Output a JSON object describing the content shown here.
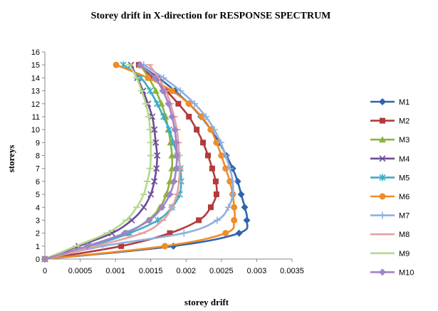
{
  "chart_data": {
    "type": "line",
    "title": "Storey drift  in  X-direction  for  RESPONSE  SPECTRUM",
    "xlabel": "storey drift",
    "ylabel": "storeys",
    "xlim": [
      0,
      0.0035
    ],
    "ylim": [
      0,
      16
    ],
    "x_ticks": [
      0,
      0.0005,
      0.001,
      0.0015,
      0.002,
      0.0025,
      0.003,
      0.0035
    ],
    "x_tick_labels": [
      "0",
      "0.0005",
      "0.001",
      "0.0015",
      "0.002",
      "0.0025",
      "0.003",
      "0.0035"
    ],
    "y_ticks": [
      0,
      1,
      2,
      3,
      4,
      5,
      6,
      7,
      8,
      9,
      10,
      11,
      12,
      13,
      14,
      15,
      16
    ],
    "y_tick_labels": [
      "0",
      "1",
      "2",
      "3",
      "4",
      "5",
      "6",
      "7",
      "8",
      "9",
      "10",
      "11",
      "12",
      "13",
      "14",
      "15",
      "16"
    ],
    "grid": false,
    "legend_position": "right",
    "y": [
      0,
      1,
      2,
      3,
      4,
      5,
      6,
      7,
      8,
      9,
      10,
      11,
      12,
      13,
      14,
      15
    ],
    "series": [
      {
        "name": "M1",
        "color": "#2e64ad",
        "marker": "diamond",
        "x": [
          0,
          0.00182,
          0.00275,
          0.00286,
          0.00283,
          0.00278,
          0.00273,
          0.00266,
          0.00257,
          0.00247,
          0.00235,
          0.00221,
          0.00204,
          0.00184,
          0.00161,
          0.00134
        ]
      },
      {
        "name": "M2",
        "color": "#b23b3b",
        "marker": "square",
        "x": [
          0,
          0.00108,
          0.00177,
          0.00218,
          0.00235,
          0.00243,
          0.00242,
          0.00237,
          0.00231,
          0.00224,
          0.00215,
          0.00204,
          0.00189,
          0.00172,
          0.00153,
          0.00133
        ]
      },
      {
        "name": "M3",
        "color": "#8db33b",
        "marker": "triangle",
        "x": [
          0,
          0.00063,
          0.00115,
          0.00146,
          0.00163,
          0.00172,
          0.00177,
          0.0018,
          0.0018,
          0.00178,
          0.00175,
          0.00171,
          0.00165,
          0.00157,
          0.00147,
          0.00135
        ]
      },
      {
        "name": "M4",
        "color": "#6e4b96",
        "marker": "x",
        "x": [
          0,
          0.00048,
          0.00095,
          0.00123,
          0.0014,
          0.0015,
          0.00155,
          0.00158,
          0.00159,
          0.00157,
          0.00155,
          0.00152,
          0.00146,
          0.00139,
          0.00131,
          0.00122
        ]
      },
      {
        "name": "M5",
        "color": "#3aaec6",
        "marker": "asterisk",
        "x": [
          0,
          0.00065,
          0.0012,
          0.0016,
          0.0018,
          0.00191,
          0.00193,
          0.00192,
          0.00188,
          0.00182,
          0.00176,
          0.00168,
          0.00159,
          0.00149,
          0.00136,
          0.00111
        ]
      },
      {
        "name": "M6",
        "color": "#f08c28",
        "marker": "circle",
        "x": [
          0,
          0.0017,
          0.00256,
          0.00268,
          0.00268,
          0.00266,
          0.00262,
          0.00256,
          0.0025,
          0.00243,
          0.00235,
          0.00222,
          0.00204,
          0.0018,
          0.00146,
          0.00101
        ]
      },
      {
        "name": "M7",
        "color": "#8eb0dd",
        "marker": "plus",
        "x": [
          0,
          0.00082,
          0.00197,
          0.00244,
          0.0026,
          0.00266,
          0.00266,
          0.00262,
          0.00256,
          0.00249,
          0.0024,
          0.00228,
          0.00212,
          0.00192,
          0.00168,
          0.0014
        ]
      },
      {
        "name": "M8",
        "color": "#e5a0a0",
        "marker": "dash",
        "x": [
          0,
          0.00072,
          0.00138,
          0.00167,
          0.0018,
          0.00187,
          0.0019,
          0.00191,
          0.0019,
          0.00189,
          0.00187,
          0.00183,
          0.00178,
          0.00171,
          0.00161,
          0.00148
        ]
      },
      {
        "name": "M9",
        "color": "#b3d98c",
        "marker": "dash",
        "x": [
          0,
          0.00044,
          0.00088,
          0.00115,
          0.0013,
          0.0014,
          0.00145,
          0.00149,
          0.0015,
          0.0015,
          0.00149,
          0.00147,
          0.00143,
          0.00137,
          0.0013,
          0.0012
        ]
      },
      {
        "name": "M10",
        "color": "#a084c8",
        "marker": "diamond",
        "x": [
          0,
          0.0006,
          0.00113,
          0.00148,
          0.00166,
          0.00177,
          0.00183,
          0.00186,
          0.00187,
          0.00186,
          0.00184,
          0.0018,
          0.00175,
          0.00167,
          0.00156,
          0.00135
        ]
      }
    ]
  }
}
